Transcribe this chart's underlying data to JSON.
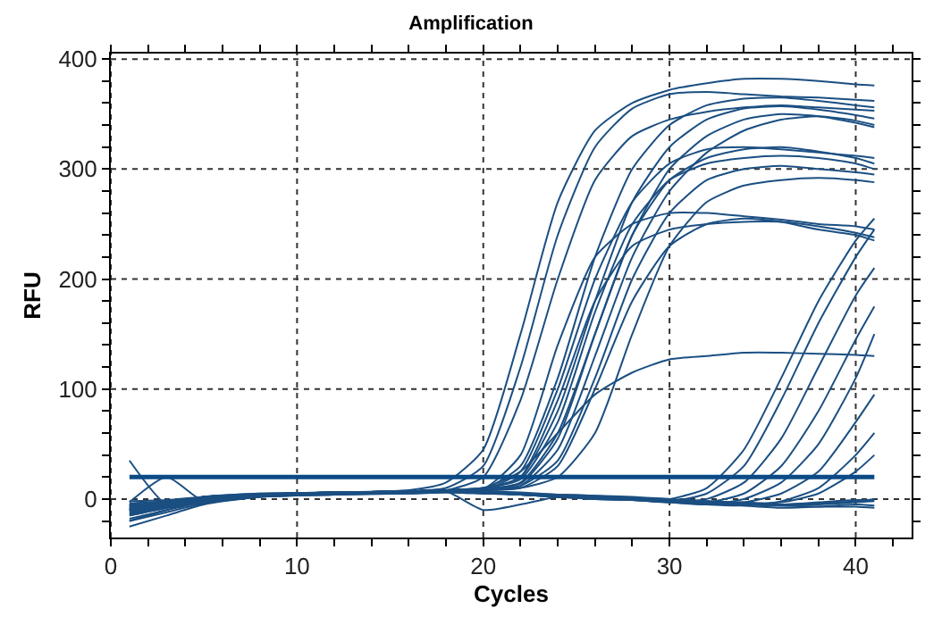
{
  "chart_data": {
    "type": "line",
    "title": "Amplification",
    "xlabel": "Cycles",
    "ylabel": "RFU",
    "x": [
      1,
      3,
      5,
      8,
      12,
      16,
      18,
      20,
      22,
      24,
      26,
      28,
      30,
      32,
      34,
      36,
      38,
      40,
      41
    ],
    "xlim": [
      0,
      43
    ],
    "xticks": [
      0,
      {
        "value": 2,
        "label": null
      },
      {
        "value": 4,
        "label": null
      },
      {
        "value": 6,
        "label": null
      },
      {
        "value": 8,
        "label": null
      },
      10,
      {
        "value": 12,
        "label": null
      },
      {
        "value": 14,
        "label": null
      },
      {
        "value": 16,
        "label": null
      },
      {
        "value": 18,
        "label": null
      },
      20,
      {
        "value": 22,
        "label": null
      },
      {
        "value": 24,
        "label": null
      },
      {
        "value": 26,
        "label": null
      },
      {
        "value": 28,
        "label": null
      },
      30,
      {
        "value": 32,
        "label": null
      },
      {
        "value": 34,
        "label": null
      },
      {
        "value": 36,
        "label": null
      },
      {
        "value": 38,
        "label": null
      },
      40,
      {
        "value": 42,
        "label": null
      }
    ],
    "ylim": [
      -35,
      405
    ],
    "yticks": [
      {
        "value": -20,
        "label": null
      },
      0,
      {
        "value": 20,
        "label": null
      },
      {
        "value": 40,
        "label": null
      },
      {
        "value": 60,
        "label": null
      },
      {
        "value": 80,
        "label": null
      },
      100,
      {
        "value": 120,
        "label": null
      },
      {
        "value": 140,
        "label": null
      },
      {
        "value": 160,
        "label": null
      },
      {
        "value": 180,
        "label": null
      },
      200,
      {
        "value": 220,
        "label": null
      },
      {
        "value": 240,
        "label": null
      },
      {
        "value": 260,
        "label": null
      },
      {
        "value": 280,
        "label": null
      },
      300,
      {
        "value": 320,
        "label": null
      },
      {
        "value": 340,
        "label": null
      },
      {
        "value": 360,
        "label": null
      },
      {
        "value": 380,
        "label": null
      },
      400
    ],
    "grid": true,
    "marker": "none",
    "line_style": "solid",
    "ref_lines": [
      {
        "axis": "y",
        "value": 20,
        "label": null,
        "color": "#0b4a86"
      }
    ],
    "series": [
      {
        "color": "#1b4f82",
        "values": [
          -5,
          -3,
          2,
          5,
          6,
          8,
          15,
          45,
          150,
          270,
          335,
          360,
          372,
          378,
          382,
          382,
          380,
          377,
          376
        ]
      },
      {
        "color": "#1b4f82",
        "values": [
          -10,
          -5,
          0,
          4,
          5,
          7,
          10,
          30,
          120,
          240,
          320,
          355,
          368,
          370,
          368,
          366,
          365,
          363,
          362
        ]
      },
      {
        "color": "#1b4f82",
        "values": [
          -15,
          -8,
          -2,
          3,
          5,
          6,
          8,
          20,
          90,
          200,
          290,
          330,
          345,
          352,
          356,
          358,
          356,
          354,
          353
        ]
      },
      {
        "color": "#1b4f82",
        "values": [
          -8,
          -4,
          1,
          4,
          6,
          6,
          7,
          9,
          30,
          110,
          220,
          300,
          340,
          358,
          364,
          365,
          362,
          358,
          356
        ]
      },
      {
        "color": "#1b4f82",
        "values": [
          -4,
          -2,
          1,
          3,
          5,
          7,
          8,
          10,
          20,
          80,
          180,
          270,
          320,
          345,
          355,
          357,
          354,
          349,
          346
        ]
      },
      {
        "color": "#1b4f82",
        "values": [
          -6,
          -3,
          2,
          4,
          6,
          7,
          8,
          9,
          15,
          60,
          150,
          240,
          300,
          330,
          345,
          350,
          348,
          342,
          338
        ]
      },
      {
        "color": "#1b4f82",
        "values": [
          -18,
          -10,
          -3,
          2,
          4,
          6,
          7,
          8,
          12,
          45,
          130,
          220,
          280,
          315,
          335,
          345,
          348,
          344,
          340
        ]
      },
      {
        "color": "#1b4f82",
        "values": [
          -9,
          -5,
          0,
          3,
          5,
          6,
          7,
          8,
          25,
          100,
          200,
          270,
          305,
          318,
          320,
          318,
          315,
          312,
          310
        ]
      },
      {
        "color": "#1b4f82",
        "values": [
          -11,
          -6,
          0,
          3,
          5,
          6,
          7,
          9,
          14,
          55,
          150,
          240,
          290,
          310,
          318,
          320,
          316,
          310,
          305
        ]
      },
      {
        "color": "#1b4f82",
        "values": [
          -7,
          -3,
          1,
          4,
          6,
          7,
          8,
          10,
          18,
          70,
          170,
          250,
          290,
          305,
          310,
          312,
          310,
          305,
          300
        ]
      },
      {
        "color": "#1b4f82",
        "values": [
          -14,
          -7,
          -1,
          3,
          5,
          6,
          7,
          9,
          40,
          140,
          220,
          250,
          260,
          260,
          257,
          254,
          250,
          248,
          245
        ]
      },
      {
        "color": "#1b4f82",
        "values": [
          -10,
          -5,
          1,
          4,
          6,
          7,
          8,
          9,
          20,
          90,
          180,
          230,
          245,
          250,
          252,
          252,
          248,
          242,
          238
        ]
      },
      {
        "color": "#1b4f82",
        "values": [
          -6,
          -3,
          2,
          4,
          5,
          6,
          7,
          8,
          10,
          20,
          60,
          150,
          230,
          270,
          285,
          290,
          292,
          290,
          288
        ]
      },
      {
        "color": "#1b4f82",
        "values": [
          -20,
          -10,
          -2,
          3,
          5,
          6,
          7,
          8,
          10,
          30,
          100,
          180,
          230,
          250,
          255,
          252,
          245,
          240,
          235
        ]
      },
      {
        "color": "#1b4f82",
        "values": [
          -9,
          -4,
          1,
          4,
          6,
          7,
          8,
          10,
          25,
          60,
          95,
          115,
          127,
          130,
          133,
          133,
          132,
          131,
          130
        ]
      },
      {
        "color": "#1b4f82",
        "values": [
          -2,
          -1,
          2,
          5,
          6,
          7,
          8,
          9,
          12,
          35,
          110,
          200,
          260,
          290,
          300,
          303,
          300,
          297,
          295
        ]
      },
      {
        "color": "#1b4f82",
        "values": [
          -10,
          -5,
          0,
          4,
          6,
          7,
          8,
          7,
          5,
          3,
          2,
          0,
          0,
          10,
          45,
          110,
          180,
          235,
          255
        ]
      },
      {
        "color": "#1b4f82",
        "values": [
          -8,
          -4,
          1,
          4,
          6,
          7,
          8,
          7,
          5,
          3,
          1,
          0,
          -2,
          5,
          30,
          90,
          160,
          220,
          245
        ]
      },
      {
        "color": "#1b4f82",
        "values": [
          -15,
          -8,
          -2,
          3,
          5,
          6,
          7,
          6,
          4,
          2,
          0,
          -1,
          -3,
          0,
          15,
          55,
          120,
          185,
          210
        ]
      },
      {
        "color": "#1b4f82",
        "values": [
          -6,
          -3,
          2,
          4,
          6,
          7,
          8,
          6,
          4,
          2,
          1,
          0,
          -2,
          -3,
          5,
          30,
          80,
          145,
          175
        ]
      },
      {
        "color": "#1b4f82",
        "values": [
          -13,
          -6,
          0,
          3,
          5,
          6,
          7,
          6,
          4,
          2,
          0,
          -1,
          -3,
          -5,
          0,
          15,
          50,
          110,
          150
        ]
      },
      {
        "color": "#1b4f82",
        "values": [
          -9,
          -4,
          1,
          4,
          6,
          7,
          8,
          6,
          5,
          3,
          1,
          0,
          -2,
          -4,
          -3,
          5,
          25,
          70,
          95
        ]
      },
      {
        "color": "#1b4f82",
        "values": [
          -11,
          -5,
          0,
          3,
          5,
          6,
          7,
          6,
          4,
          2,
          0,
          -1,
          -3,
          -5,
          -6,
          -2,
          10,
          40,
          60
        ]
      },
      {
        "color": "#1b4f82",
        "values": [
          -7,
          -3,
          2,
          4,
          6,
          7,
          8,
          6,
          5,
          3,
          1,
          0,
          -2,
          -3,
          -4,
          -3,
          5,
          25,
          40
        ]
      },
      {
        "color": "#1b4f82",
        "values": [
          -20,
          -12,
          -4,
          2,
          4,
          5,
          6,
          5,
          4,
          3,
          2,
          1,
          -1,
          -3,
          -5,
          -6,
          -5,
          -3,
          -2
        ]
      },
      {
        "color": "#1b4f82",
        "values": [
          -12,
          -8,
          -2,
          3,
          5,
          6,
          7,
          -10,
          -5,
          2,
          2,
          0,
          -2,
          -4,
          -6,
          -8,
          -7,
          -5,
          -6
        ]
      },
      {
        "color": "#1b4f82",
        "values": [
          35,
          -5,
          -1,
          3,
          5,
          6,
          7,
          6,
          5,
          4,
          3,
          2,
          0,
          -2,
          -4,
          -5,
          -4,
          -2,
          0
        ]
      },
      {
        "color": "#1b4f82",
        "values": [
          -25,
          -15,
          -5,
          2,
          4,
          5,
          6,
          5,
          4,
          3,
          1,
          0,
          -2,
          -4,
          -5,
          -6,
          -7,
          -7,
          -8
        ]
      },
      {
        "color": "#1b4f82",
        "values": [
          -3,
          20,
          -2,
          4,
          6,
          7,
          8,
          7,
          6,
          4,
          3,
          1,
          -1,
          -2,
          -3,
          -5,
          -3,
          -1,
          -1
        ]
      }
    ]
  }
}
